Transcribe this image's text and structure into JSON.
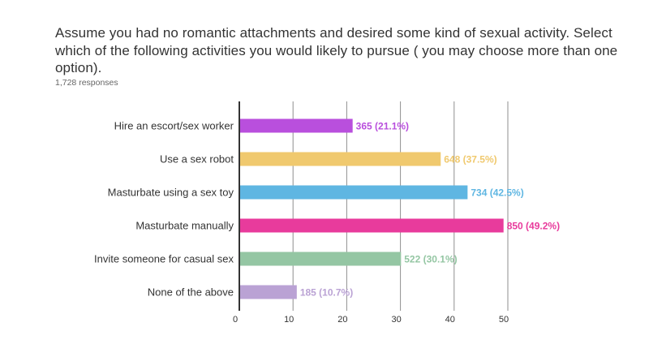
{
  "question": "Assume you had no romantic attachments and desired some kind of sexual activity. Select which of the following activities you would likely to pursue ( you may choose more than one option).",
  "responses_label": "1,728 responses",
  "chart_data": {
    "type": "bar",
    "orientation": "horizontal",
    "title": "Assume you had no romantic attachments and desired some kind of sexual activity. Select which of the following activities you would likely to pursue ( you may choose more than one option).",
    "subtitle": "1,728 responses",
    "categories": [
      "Hire an escort/sex worker",
      "Use a sex robot",
      "Masturbate using a sex toy",
      "Masturbate manually",
      "Invite someone for casual sex",
      "None of the above"
    ],
    "values": [
      21.1,
      37.5,
      42.5,
      49.2,
      30.1,
      10.7
    ],
    "counts": [
      365,
      648,
      734,
      850,
      522,
      185
    ],
    "data_labels": [
      "365 (21.1%)",
      "648 (37.5%)",
      "734 (42.5%)",
      "850 (49.2%)",
      "522 (30.1%)",
      "185 (10.7%)"
    ],
    "colors": [
      "#b94fdd",
      "#f0c96e",
      "#5fb6e2",
      "#e83b9c",
      "#94c6a3",
      "#baa2d4"
    ],
    "label_colors": [
      "#b94fdd",
      "#f0c96e",
      "#5fb6e2",
      "#e83b9c",
      "#94c6a3",
      "#baa2d4"
    ],
    "xlim": [
      0,
      50
    ],
    "xticks": [
      0,
      10,
      20,
      30,
      40,
      50
    ],
    "xlabel": "",
    "ylabel": "",
    "grid": true
  }
}
